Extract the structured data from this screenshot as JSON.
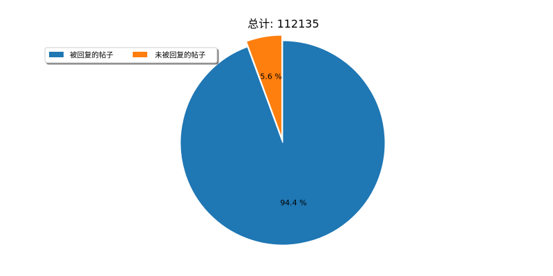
{
  "chart_data": {
    "type": "pie",
    "title": "总计: 112135",
    "slices": [
      {
        "label": "被回复的帖子",
        "value": 94.4,
        "display": "94.4 %",
        "color": "#1f77b4"
      },
      {
        "label": "未被回复的帖子",
        "value": 5.6,
        "display": "5.6 %",
        "color": "#ff7f0e",
        "exploded": true
      }
    ],
    "legend": {
      "position": "top-left",
      "columns": 2,
      "shadow": true
    }
  }
}
